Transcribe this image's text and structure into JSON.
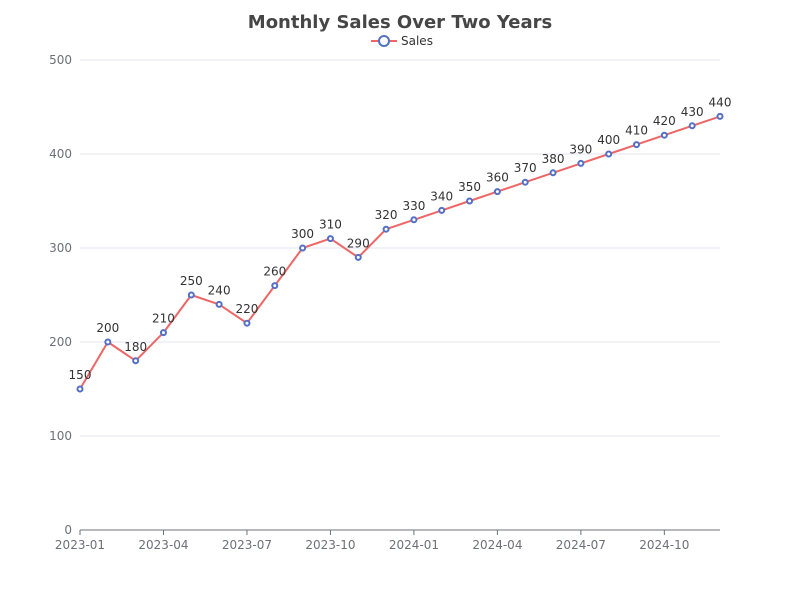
{
  "chart_data": {
    "type": "line",
    "title": "Monthly Sales Over Two Years",
    "xlabel": "",
    "ylabel": "",
    "ylim": [
      0,
      500
    ],
    "y_ticks": [
      0,
      100,
      200,
      300,
      400,
      500
    ],
    "x_ticks": [
      "2023-01",
      "2023-04",
      "2023-07",
      "2023-10",
      "2024-01",
      "2024-04",
      "2024-07",
      "2024-10"
    ],
    "grid": true,
    "legend_position": "top-center",
    "x": [
      "2023-01",
      "2023-02",
      "2023-03",
      "2023-04",
      "2023-05",
      "2023-06",
      "2023-07",
      "2023-08",
      "2023-09",
      "2023-10",
      "2023-11",
      "2023-12",
      "2024-01",
      "2024-02",
      "2024-03",
      "2024-04",
      "2024-05",
      "2024-06",
      "2024-07",
      "2024-08",
      "2024-09",
      "2024-10",
      "2024-11",
      "2024-12"
    ],
    "series": [
      {
        "name": "Sales",
        "line_color": "#ee6666",
        "marker_color": "#5470c6",
        "values": [
          150,
          200,
          180,
          210,
          250,
          240,
          220,
          260,
          300,
          310,
          290,
          320,
          330,
          340,
          350,
          360,
          370,
          380,
          390,
          400,
          410,
          420,
          430,
          440
        ]
      }
    ]
  }
}
